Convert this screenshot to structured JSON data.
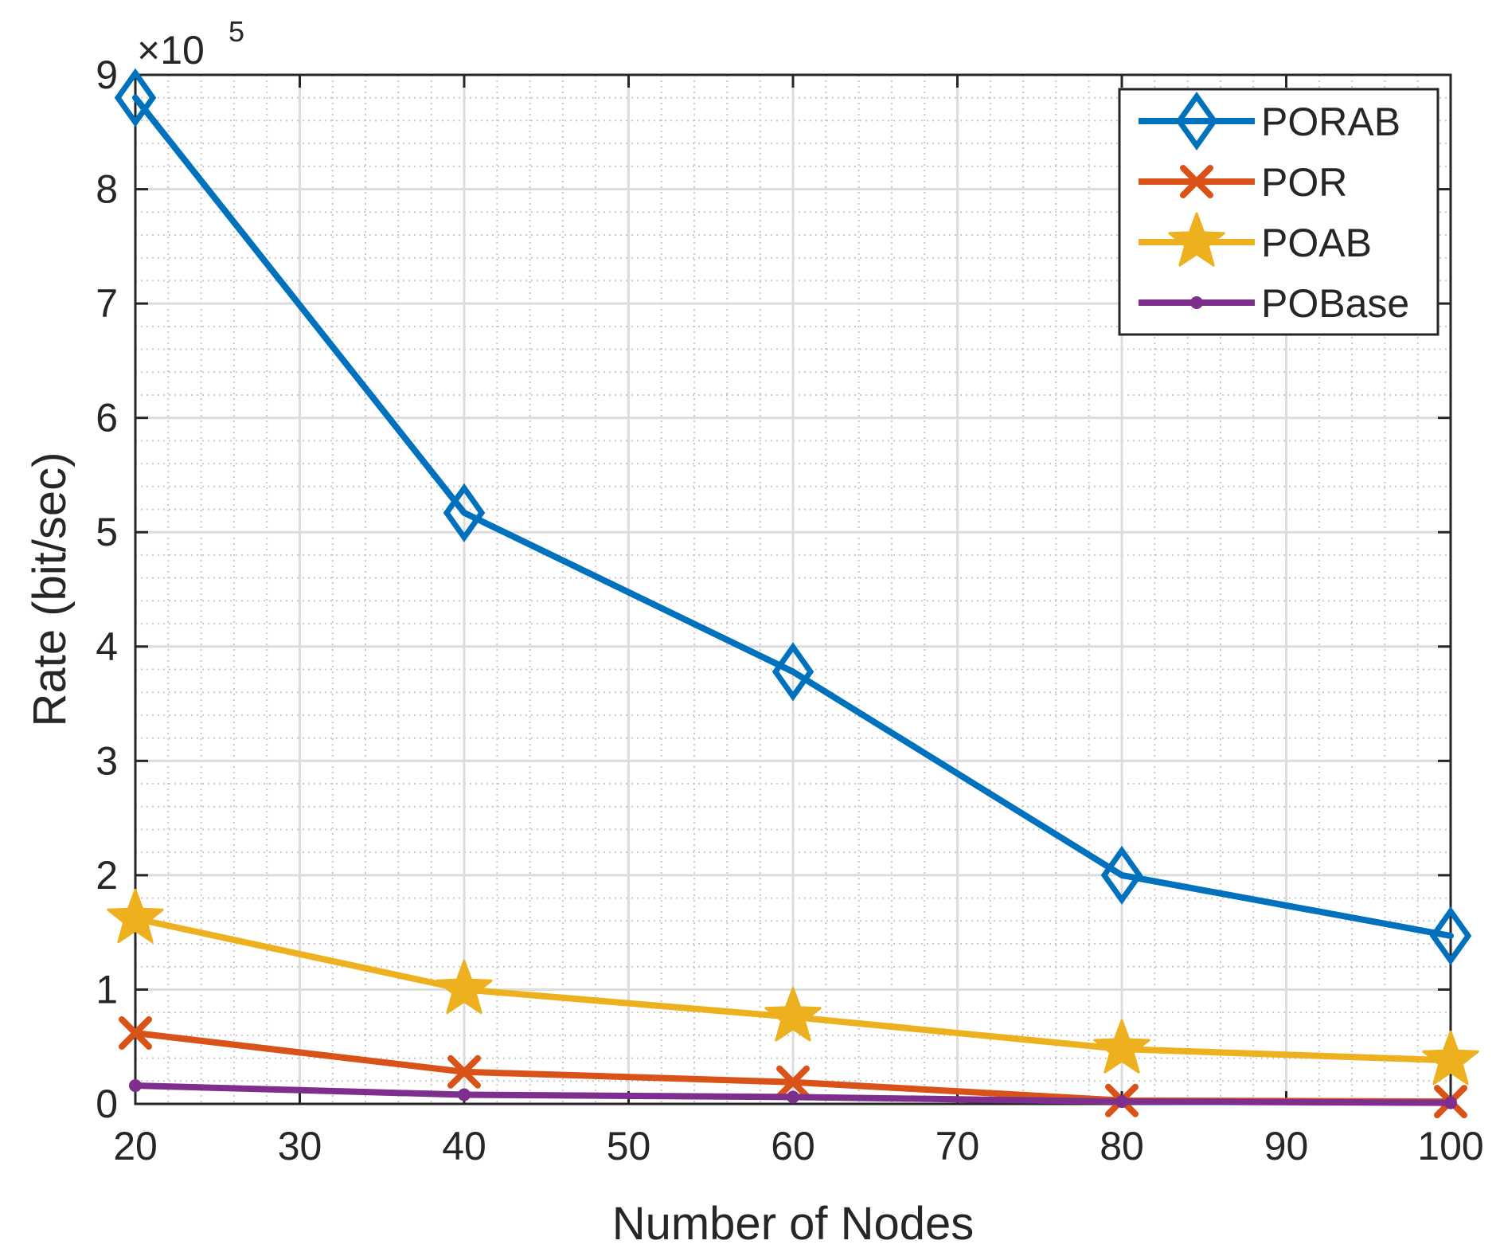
{
  "chart_data": {
    "type": "line",
    "title": "",
    "xlabel": "Number of Nodes",
    "ylabel": "Rate (bit/sec)",
    "y_multiplier_label": {
      "base": "×10",
      "exponent": "5"
    },
    "xlim": [
      20,
      100
    ],
    "ylim": [
      0,
      9
    ],
    "x_ticks": [
      "20",
      "30",
      "40",
      "50",
      "60",
      "70",
      "80",
      "90",
      "100"
    ],
    "y_ticks": [
      "0",
      "1",
      "2",
      "3",
      "4",
      "5",
      "6",
      "7",
      "8",
      "9"
    ],
    "grid": true,
    "minor_grid": true,
    "legend_position": "top-right",
    "x": [
      20,
      40,
      60,
      80,
      100
    ],
    "series": [
      {
        "name": "PORAB",
        "color": "#0072BD",
        "marker": "diamond",
        "values": [
          8.8,
          5.17,
          3.78,
          2.0,
          1.47
        ]
      },
      {
        "name": "POR",
        "color": "#D95319",
        "marker": "x",
        "values": [
          0.62,
          0.28,
          0.19,
          0.03,
          0.02
        ]
      },
      {
        "name": "POAB",
        "color": "#EDB120",
        "marker": "star",
        "values": [
          1.62,
          1.0,
          0.76,
          0.48,
          0.38
        ]
      },
      {
        "name": "POBase",
        "color": "#7E2F8E",
        "marker": "dot",
        "values": [
          0.16,
          0.08,
          0.06,
          0.02,
          0.01
        ]
      }
    ]
  }
}
